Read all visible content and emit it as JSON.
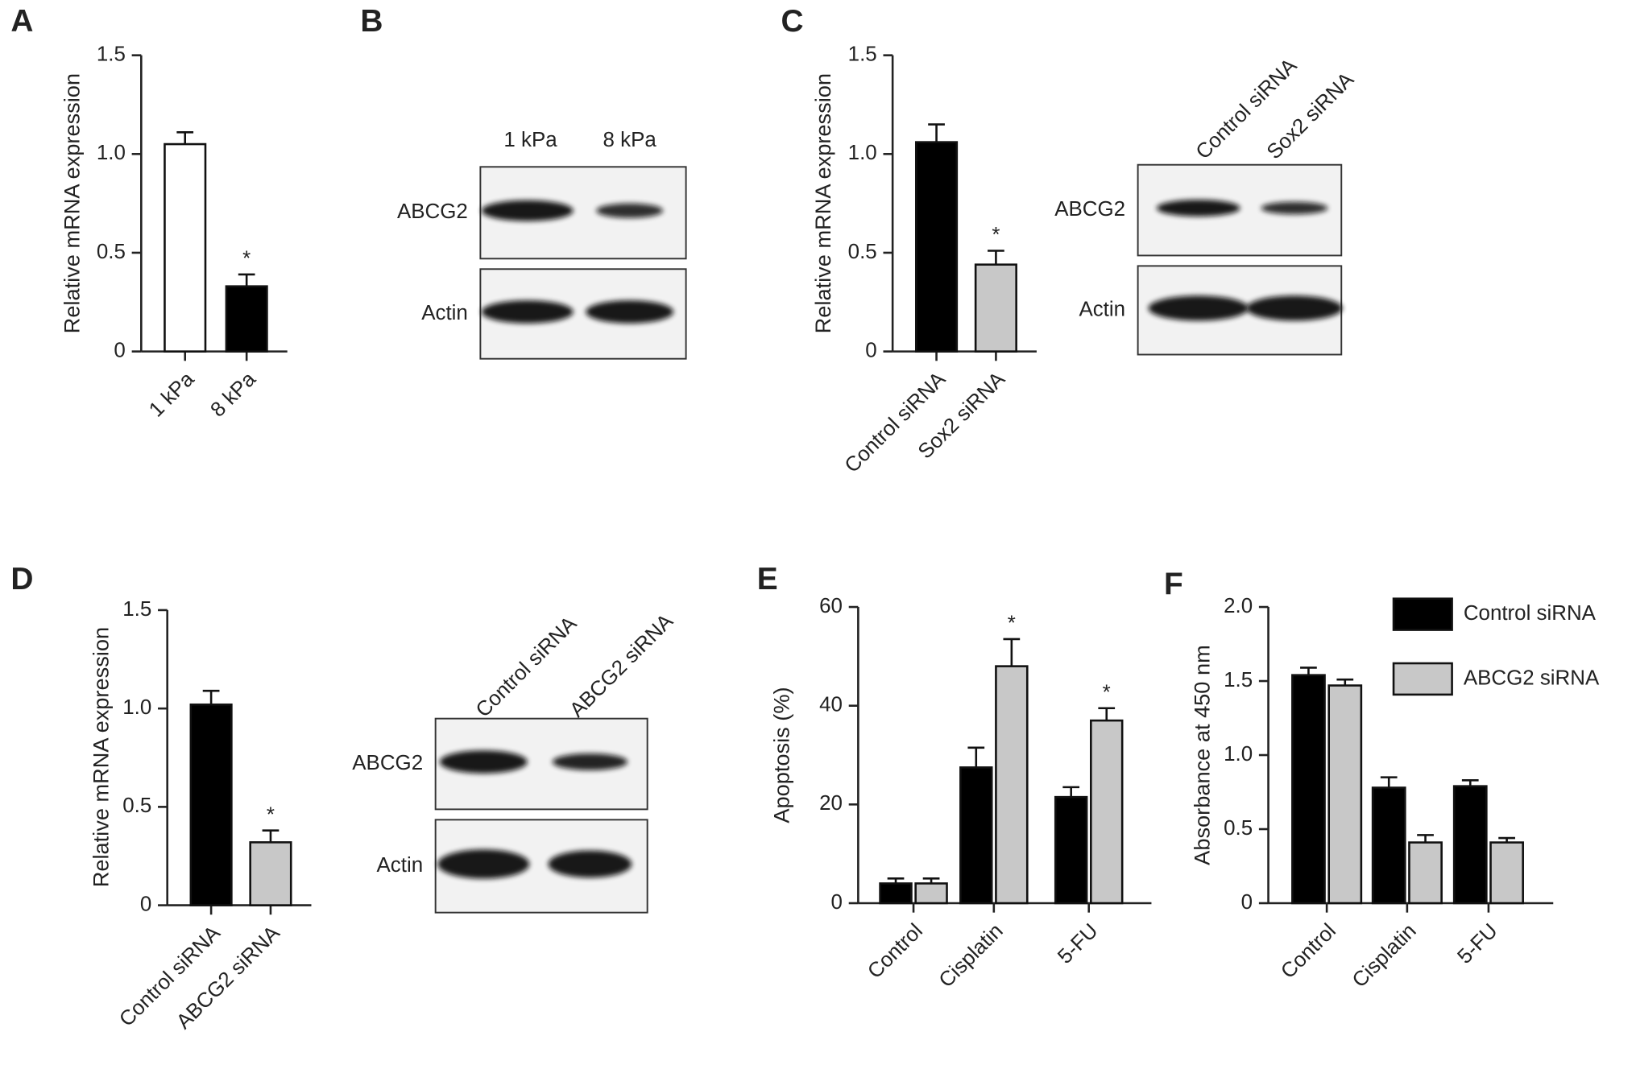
{
  "chart_data": [
    {
      "panel": "A",
      "type": "bar",
      "ylabel": "Relative mRNA expression",
      "categories": [
        "1 kPa",
        "8 kPa"
      ],
      "values": [
        1.05,
        0.33
      ],
      "errors": [
        0.06,
        0.06
      ],
      "colors": [
        "#ffffff",
        "#000000"
      ],
      "annotations": [
        null,
        "*"
      ],
      "ylim": [
        0,
        1.5
      ],
      "yticks": [
        0,
        0.5,
        {
          "value": 1.0,
          "label": "1.0"
        },
        1.5
      ]
    },
    {
      "panel": "C",
      "type": "bar",
      "ylabel": "Relative mRNA expression",
      "categories": [
        "Control siRNA",
        "Sox2 siRNA"
      ],
      "values": [
        1.06,
        0.44
      ],
      "errors": [
        0.09,
        0.07
      ],
      "colors": [
        "#000000",
        "#c8c8c8"
      ],
      "annotations": [
        null,
        "*"
      ],
      "ylim": [
        0,
        1.5
      ],
      "yticks": [
        0,
        0.5,
        {
          "value": 1.0,
          "label": "1.0"
        },
        1.5
      ]
    },
    {
      "panel": "D",
      "type": "bar",
      "ylabel": "Relative mRNA expression",
      "categories": [
        "Control siRNA",
        "ABCG2 siRNA"
      ],
      "values": [
        1.02,
        0.32
      ],
      "errors": [
        0.07,
        0.06
      ],
      "colors": [
        "#000000",
        "#c8c8c8"
      ],
      "annotations": [
        null,
        "*"
      ],
      "ylim": [
        0,
        1.5
      ],
      "yticks": [
        0,
        0.5,
        {
          "value": 1.0,
          "label": "1.0"
        },
        1.5
      ]
    },
    {
      "panel": "E",
      "type": "grouped-bar",
      "ylabel": "Apoptosis (%)",
      "categories": [
        "Control",
        "Cisplatin",
        "5-FU"
      ],
      "series": [
        {
          "color": "#000000",
          "values": [
            4,
            27.5,
            21.5
          ],
          "errors": [
            1,
            4,
            2
          ],
          "annotations": [
            null,
            null,
            null
          ]
        },
        {
          "color": "#c8c8c8",
          "values": [
            4,
            48,
            37
          ],
          "errors": [
            1,
            5.5,
            2.5
          ],
          "annotations": [
            null,
            "*",
            "*"
          ]
        }
      ],
      "ylim": [
        0,
        60
      ],
      "yticks": [
        0,
        20,
        40,
        60
      ]
    },
    {
      "panel": "F",
      "type": "grouped-bar",
      "ylabel": "Absorbance at 450 nm",
      "categories": [
        "Control",
        "Cisplatin",
        "5-FU"
      ],
      "series": [
        {
          "name": "Control siRNA",
          "color": "#000000",
          "values": [
            1.54,
            0.78,
            0.79
          ],
          "errors": [
            0.05,
            0.07,
            0.04
          ]
        },
        {
          "name": "ABCG2 siRNA",
          "color": "#c8c8c8",
          "values": [
            1.47,
            0.41,
            0.41
          ],
          "errors": [
            0.04,
            0.05,
            0.03
          ]
        }
      ],
      "legend": "upper right",
      "ylim": [
        0,
        2.0
      ],
      "yticks": [
        0,
        0.5,
        {
          "value": 1.0,
          "label": "1.0"
        },
        1.5,
        {
          "value": 2.0,
          "label": "2.0"
        }
      ]
    }
  ],
  "blots": [
    {
      "panel": "B",
      "lanes": [
        "1 kPa",
        "8 kPa"
      ],
      "rows": [
        "ABCG2",
        "Actin"
      ]
    },
    {
      "lanes": [
        "Control siRNA",
        "Sox2 siRNA"
      ],
      "rows": [
        "ABCG2",
        "Actin"
      ]
    },
    {
      "lanes": [
        "Control siRNA",
        "ABCG2 siRNA"
      ],
      "rows": [
        "ABCG2",
        "Actin"
      ]
    }
  ]
}
